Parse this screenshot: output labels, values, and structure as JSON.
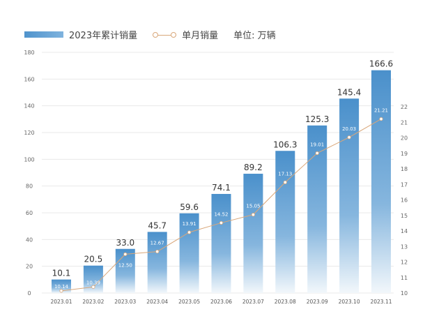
{
  "chart_data": {
    "type": "bar+line",
    "categories": [
      "2023.01",
      "2023.02",
      "2023.03",
      "2023.04",
      "2023.05",
      "2023.06",
      "2023.07",
      "2023.08",
      "2023.09",
      "2023.10",
      "2023.11"
    ],
    "series": [
      {
        "name": "2023年累计销量",
        "type": "bar",
        "axis": "left",
        "values": [
          10.1,
          20.5,
          33.0,
          45.7,
          59.6,
          74.1,
          89.2,
          106.3,
          125.3,
          145.4,
          166.6
        ],
        "labels": [
          "10.1",
          "20.5",
          "33.0",
          "45.7",
          "59.6",
          "74.1",
          "89.2",
          "106.3",
          "125.3",
          "145.4",
          "166.6"
        ]
      },
      {
        "name": "单月销量",
        "type": "line",
        "axis": "right",
        "values": [
          10.14,
          10.39,
          12.5,
          12.67,
          13.91,
          14.52,
          15.05,
          17.13,
          19.01,
          20.03,
          21.21
        ],
        "labels": [
          "10.14",
          "10.39",
          "12.50",
          "12.67",
          "13.91",
          "14.52",
          "15.05",
          "17.13",
          "19.01",
          "20.03",
          "21.21"
        ]
      }
    ],
    "unit_note": "单位: 万辆",
    "y_left": {
      "range": [
        0,
        180
      ],
      "ticks": [
        0,
        20,
        40,
        60,
        80,
        100,
        120,
        140,
        160,
        180
      ]
    },
    "y_right": {
      "range": [
        10,
        22
      ],
      "ticks": [
        10,
        11,
        12,
        13,
        14,
        15,
        16,
        17,
        18,
        19,
        20,
        21,
        22
      ]
    },
    "grid": true,
    "legend": "top-left",
    "colors": {
      "bar_top": "#4a90cb",
      "bar_bottom": "#eef4fa",
      "line": "#d9a77a",
      "grid": "#e8e8e8"
    }
  }
}
